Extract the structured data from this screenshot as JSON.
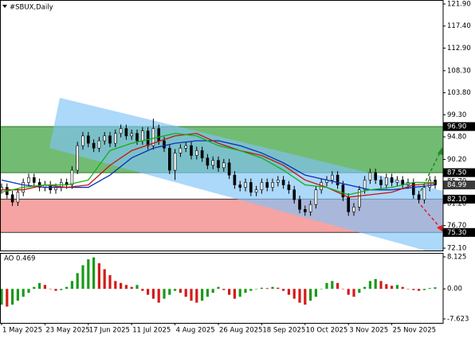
{
  "chart_data": [
    {
      "type": "candlestick",
      "title": "#SBUX,Daily",
      "xlim": [
        -0.294,
        81.47
      ],
      "ylim": [
        71.62,
        122.71
      ],
      "yticks": [
        {
          "value": 121.9,
          "label": "121.90"
        },
        {
          "value": 117.4,
          "label": "117.40"
        },
        {
          "value": 112.9,
          "label": "112.90"
        },
        {
          "value": 108.3,
          "label": "108.30"
        },
        {
          "value": 103.8,
          "label": "103.80"
        },
        {
          "value": 99.3,
          "label": "99.30"
        },
        {
          "value": 94.8,
          "label": "94.80"
        },
        {
          "value": 90.2,
          "label": "90.20"
        },
        {
          "value": 85.7,
          "label": "85.70"
        },
        {
          "value": 81.2,
          "label": "81.20"
        },
        {
          "value": 76.7,
          "label": "76.70"
        },
        {
          "value": 72.1,
          "label": "72.10"
        }
      ],
      "zones": [
        {
          "from": {
            "value": 87.5,
            "label": "87.50"
          },
          "to": {
            "value": 96.9,
            "label": "96.90"
          },
          "color": "#72bb72",
          "border": "#2f7d2f"
        },
        {
          "from": {
            "value": 75.3,
            "label": "75.30"
          },
          "to": {
            "value": 82.1,
            "label": "82.10"
          },
          "color": "#f6a3a3",
          "border": "#333333"
        }
      ],
      "last_price": {
        "value": 84.99,
        "label": "84.99"
      },
      "open": [
        84.0,
        84.5,
        83.0,
        81.5,
        83.5,
        85.5,
        86.5,
        85.5,
        84.5,
        85.0,
        84.0,
        84.5,
        85.5,
        85.0,
        88.0,
        93.0,
        95.0,
        93.5,
        92.5,
        94.0,
        95.0,
        93.5,
        95.5,
        96.5,
        95.0,
        95.5,
        94.0,
        96.0,
        93.0,
        96.5,
        94.0,
        92.5,
        88.0,
        91.5,
        92.5,
        93.0,
        91.0,
        92.0,
        90.5,
        89.0,
        90.0,
        88.5,
        89.5,
        87.0,
        85.0,
        84.5,
        85.5,
        83.5,
        84.0,
        85.5,
        84.5,
        85.5,
        86.0,
        85.0,
        84.0,
        82.0,
        80.0,
        79.5,
        81.0,
        84.0,
        85.5,
        86.0,
        87.0,
        85.0,
        82.5,
        79.5,
        80.5,
        84.0,
        86.0,
        87.5,
        86.0,
        85.0,
        86.5,
        85.5,
        86.0,
        85.0,
        85.5,
        83.0,
        82.0,
        84.5,
        86.0
      ],
      "high": [
        85.3,
        85.3,
        83.8,
        84.3,
        86.3,
        87.3,
        87.3,
        86.3,
        85.8,
        85.8,
        85.3,
        86.3,
        86.3,
        88.8,
        93.8,
        95.8,
        95.8,
        94.3,
        94.8,
        95.8,
        95.8,
        96.3,
        97.3,
        97.3,
        96.3,
        96.3,
        96.8,
        96.8,
        98.5,
        97.3,
        94.8,
        93.3,
        92.3,
        93.3,
        93.8,
        93.8,
        92.8,
        92.8,
        91.3,
        90.8,
        90.8,
        90.3,
        90.3,
        87.8,
        85.8,
        86.3,
        86.3,
        84.8,
        86.3,
        86.3,
        86.3,
        86.8,
        86.8,
        85.8,
        84.8,
        82.8,
        80.8,
        81.8,
        84.8,
        86.3,
        86.8,
        87.8,
        87.8,
        85.8,
        83.3,
        81.3,
        84.8,
        86.8,
        88.3,
        88.3,
        86.8,
        87.3,
        87.3,
        86.8,
        86.8,
        86.3,
        86.3,
        83.8,
        85.3,
        86.8,
        86.8
      ],
      "low": [
        83.2,
        82.2,
        80.7,
        80.7,
        82.7,
        84.7,
        84.7,
        83.7,
        83.7,
        83.2,
        83.2,
        83.7,
        84.2,
        84.2,
        87.2,
        92.2,
        92.7,
        91.7,
        91.7,
        93.2,
        92.7,
        92.7,
        94.7,
        94.2,
        94.2,
        93.2,
        93.2,
        92.2,
        92.2,
        93.2,
        91.7,
        87.2,
        86.0,
        90.7,
        91.7,
        90.2,
        90.2,
        89.7,
        88.2,
        88.2,
        87.7,
        87.7,
        86.2,
        84.2,
        83.7,
        83.7,
        82.7,
        82.7,
        83.2,
        83.7,
        83.7,
        84.7,
        84.2,
        83.2,
        81.2,
        79.2,
        78.7,
        78.7,
        80.2,
        83.2,
        84.7,
        85.2,
        84.2,
        81.7,
        78.7,
        78.7,
        79.7,
        83.2,
        85.2,
        85.2,
        84.2,
        84.2,
        84.7,
        84.7,
        84.2,
        84.2,
        82.2,
        81.2,
        81.2,
        83.7,
        84.2
      ],
      "close": [
        84.5,
        83.0,
        81.5,
        83.5,
        85.5,
        86.5,
        85.5,
        84.5,
        85.0,
        84.0,
        84.5,
        85.5,
        85.0,
        88.0,
        93.0,
        95.0,
        93.5,
        92.5,
        94.0,
        95.0,
        93.5,
        95.5,
        96.5,
        95.0,
        95.5,
        94.0,
        96.0,
        93.0,
        96.5,
        94.0,
        92.5,
        88.0,
        91.5,
        92.5,
        93.0,
        91.0,
        92.0,
        90.5,
        89.0,
        90.0,
        88.5,
        89.5,
        87.0,
        85.0,
        84.5,
        85.5,
        83.5,
        84.0,
        85.5,
        84.5,
        85.5,
        86.0,
        85.0,
        84.0,
        82.0,
        80.0,
        79.5,
        81.0,
        84.0,
        85.5,
        86.0,
        87.0,
        85.0,
        82.5,
        79.5,
        80.5,
        84.0,
        86.0,
        87.5,
        86.0,
        85.0,
        86.5,
        85.5,
        86.0,
        85.0,
        85.5,
        83.0,
        82.0,
        84.5,
        86.0,
        84.99
      ],
      "lines": [
        {
          "color": "#0b2fb8",
          "x": [
            0,
            4,
            8,
            12,
            16,
            20,
            24,
            28,
            32,
            36,
            40,
            44,
            48,
            52,
            56,
            60,
            64,
            68,
            72,
            76,
            80
          ],
          "values": [
            86,
            85,
            84.5,
            84.5,
            84.5,
            87,
            90.5,
            92.5,
            93.5,
            94,
            94,
            93,
            91.5,
            89.5,
            87,
            86,
            85,
            84,
            84,
            84.5,
            85
          ]
        },
        {
          "color": "#c41414",
          "x": [
            0,
            4,
            8,
            12,
            16,
            20,
            24,
            28,
            32,
            36,
            40,
            44,
            48,
            52,
            56,
            60,
            64,
            68,
            72,
            76,
            80
          ],
          "values": [
            84,
            84,
            85,
            84.5,
            85,
            89,
            92,
            93.5,
            95,
            95.5,
            93.5,
            92,
            91,
            89,
            86,
            84.5,
            82.5,
            83,
            83.5,
            85,
            85.3
          ]
        },
        {
          "color": "#12b012",
          "x": [
            0,
            4,
            8,
            12,
            16,
            20,
            24,
            28,
            32,
            36,
            40,
            44,
            48,
            52,
            56,
            60,
            64,
            68,
            72,
            76,
            80
          ],
          "values": [
            83.5,
            84.5,
            85,
            85,
            86,
            92,
            93.5,
            94.5,
            95.5,
            95,
            93,
            92,
            90.5,
            88,
            85,
            84.5,
            83,
            84,
            84.5,
            85.5,
            85.5
          ]
        }
      ]
    },
    {
      "type": "histogram",
      "title": "AO 0.469",
      "xlim": [
        -0.294,
        81.47
      ],
      "ylim": [
        -8.63,
        9.13
      ],
      "yticks": [
        8.125,
        {
          "value": 0,
          "label": "0.00"
        },
        -7.623
      ],
      "xticks": [
        {
          "value": 0,
          "label": "1 May 2025"
        },
        {
          "value": 8,
          "label": "23 May 2025"
        },
        {
          "value": 16,
          "label": "17 Jun 2025"
        },
        {
          "value": 24,
          "label": "11 Jul 2025"
        },
        {
          "value": 32,
          "label": "4 Aug 2025"
        },
        {
          "value": 40,
          "label": "26 Aug 2025"
        },
        {
          "value": 48,
          "label": "18 Sep 2025"
        },
        {
          "value": 56,
          "label": "10 Oct 2025"
        },
        {
          "value": 64,
          "label": "3 Nov 2025"
        },
        {
          "value": 72,
          "label": "25 Nov 2025"
        }
      ],
      "up_color": "#1a9a1a",
      "down_color": "#d41a1a",
      "values": [
        -4,
        -4.5,
        -4,
        -3,
        -2,
        -1,
        0.5,
        1.5,
        1,
        0,
        -0.5,
        -0.3,
        0.5,
        2,
        4,
        6,
        7.5,
        8,
        6.5,
        5,
        3.5,
        2,
        1.5,
        1,
        0.5,
        1,
        -0.5,
        -1.5,
        -2.5,
        -3.5,
        -2.5,
        -1.5,
        -0.5,
        -1,
        -2,
        -3,
        -3.5,
        -3,
        -2,
        -1,
        0.5,
        -0.3,
        -1.5,
        -2.5,
        -2,
        -1,
        -0.5,
        0,
        0.3,
        0.2,
        0.5,
        0.3,
        -0.5,
        -1.5,
        -2.5,
        -3.5,
        -4,
        -3,
        -2,
        0,
        1.5,
        2,
        1.5,
        0,
        -1.5,
        -2,
        -1,
        0.5,
        2,
        2.5,
        2,
        1.2,
        0.8,
        1,
        0.5,
        0,
        -0.3,
        -0.5,
        -0.3,
        0.2,
        0.4
      ]
    }
  ]
}
